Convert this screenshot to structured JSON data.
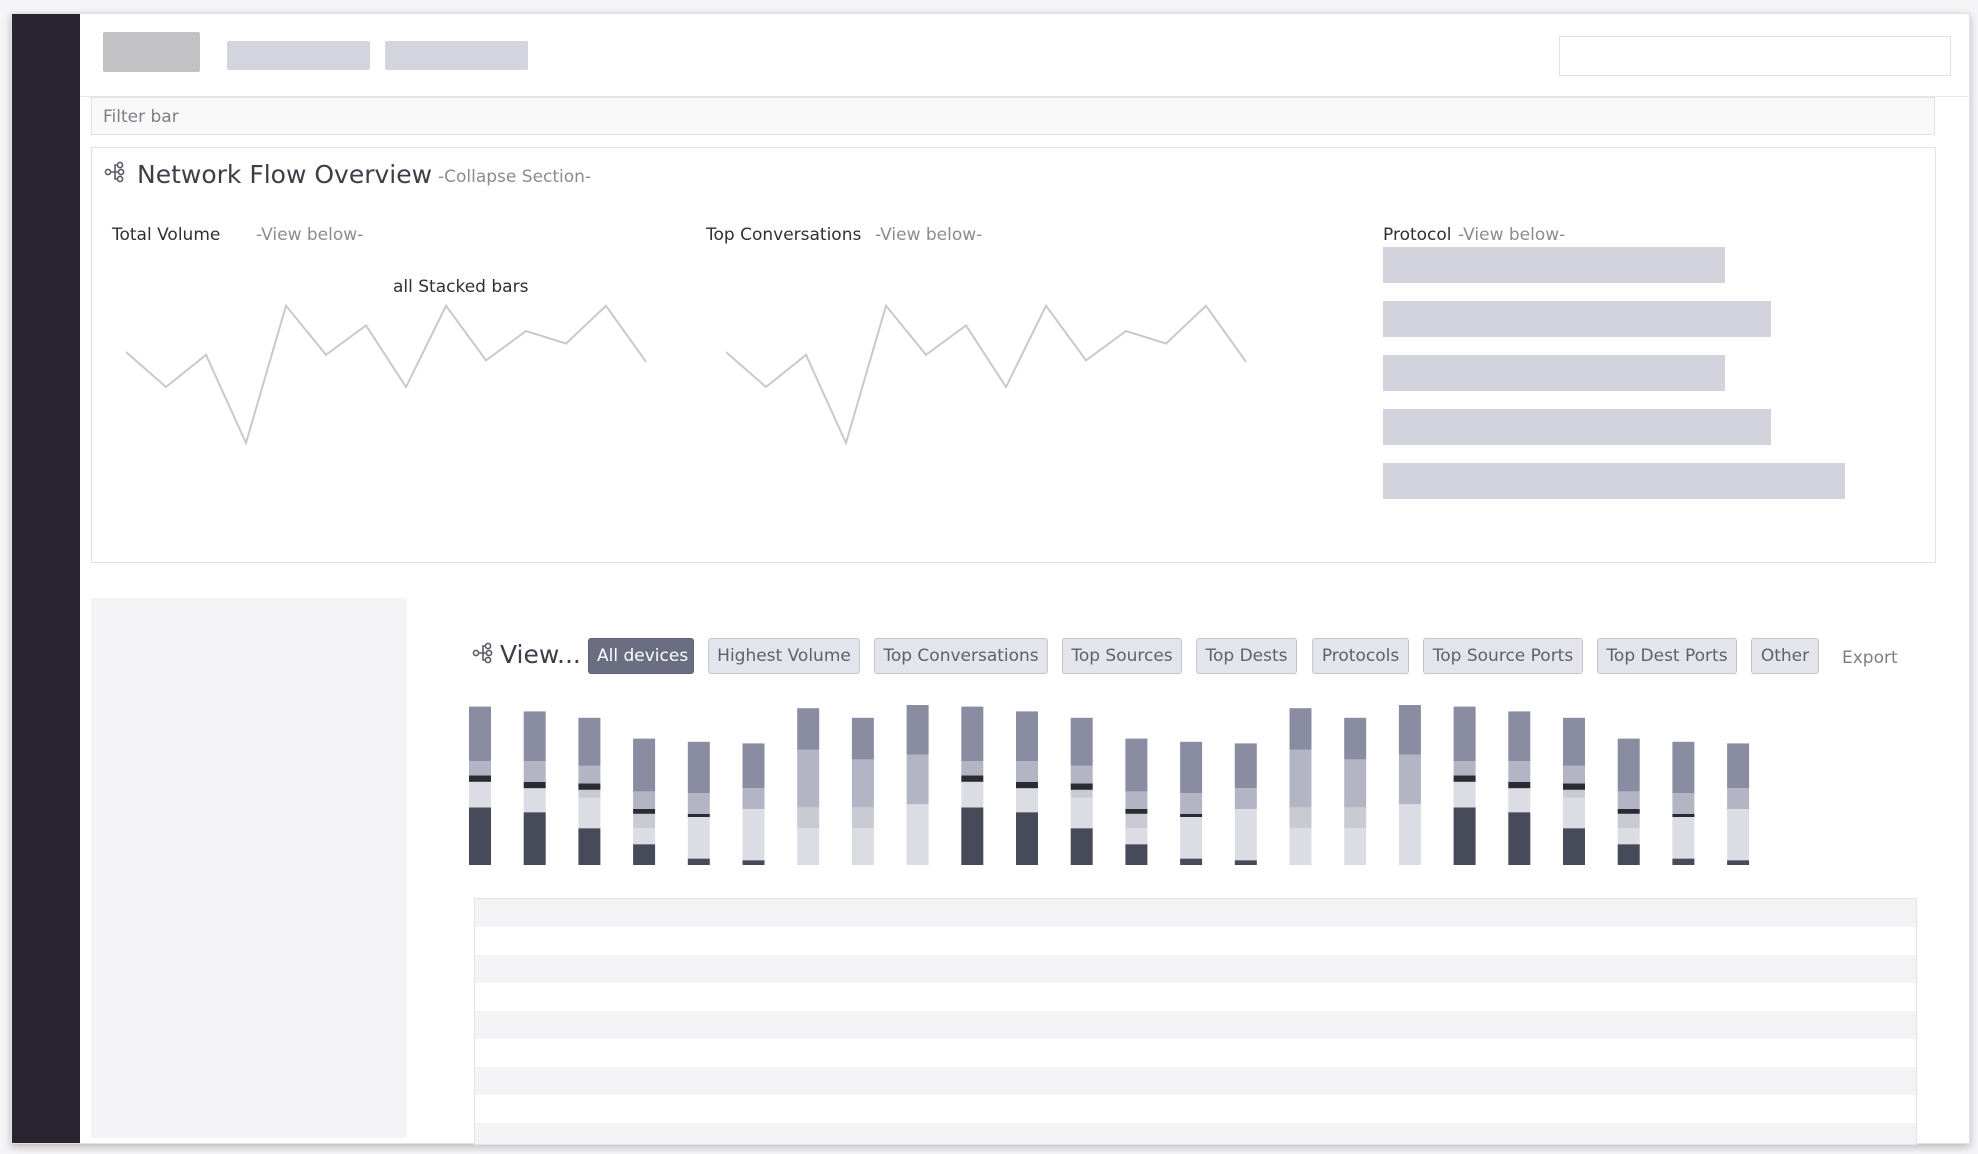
{
  "filter_bar": {
    "label": "Filter bar"
  },
  "overview": {
    "title": "Network Flow Overview",
    "collapse_label": "-Collapse Section-",
    "panels": [
      {
        "title": "Total Volume",
        "link": "-View below-",
        "chart_label": "all Stacked bars"
      },
      {
        "title": "Top Conversations",
        "link": "-View below-"
      },
      {
        "title": "Protocol",
        "link": "-View below-"
      }
    ],
    "protocol_bars": [
      0.74,
      0.84,
      0.74,
      0.84,
      1.0
    ]
  },
  "sparkline": [
    0.65,
    0.4,
    0.63,
    0.0,
    0.98,
    0.63,
    0.84,
    0.4,
    0.98,
    0.59,
    0.8,
    0.71,
    0.98,
    0.58
  ],
  "view": {
    "title": "View...",
    "tabs": [
      {
        "label": "All devices",
        "active": true
      },
      {
        "label": "Highest Volume",
        "active": false
      },
      {
        "label": "Top Conversations",
        "active": false
      },
      {
        "label": "Top Sources",
        "active": false
      },
      {
        "label": "Top Dests",
        "active": false
      },
      {
        "label": "Protocols",
        "active": false
      },
      {
        "label": "Top Source Ports",
        "active": false
      },
      {
        "label": "Top Dest Ports",
        "active": false
      },
      {
        "label": "Other",
        "active": false
      }
    ],
    "export_label": "Export"
  },
  "colors": {
    "sidebar": "#2a2330",
    "active_tab": "#6b6e81",
    "series": [
      "#474a59",
      "#dcdde4",
      "#c9cad4",
      "#2a2b33",
      "#b3b5c4",
      "#8a8ca2"
    ]
  },
  "stacked_bars": [
    [
      0.36,
      0.16,
      0.0,
      0.04,
      0.09,
      0.34
    ],
    [
      0.33,
      0.15,
      0.0,
      0.04,
      0.13,
      0.31
    ],
    [
      0.23,
      0.19,
      0.05,
      0.04,
      0.11,
      0.3
    ],
    [
      0.13,
      0.1,
      0.09,
      0.03,
      0.11,
      0.33
    ],
    [
      0.04,
      0.26,
      0.0,
      0.02,
      0.13,
      0.32
    ],
    [
      0.03,
      0.32,
      0.0,
      0.0,
      0.13,
      0.28
    ],
    [
      0.0,
      0.23,
      0.13,
      0.0,
      0.36,
      0.26
    ],
    [
      0.0,
      0.23,
      0.13,
      0.0,
      0.3,
      0.26
    ],
    [
      0.0,
      0.38,
      0.0,
      0.0,
      0.31,
      0.31
    ],
    [
      0.36,
      0.16,
      0.0,
      0.04,
      0.09,
      0.34
    ],
    [
      0.33,
      0.15,
      0.0,
      0.04,
      0.13,
      0.31
    ],
    [
      0.23,
      0.19,
      0.05,
      0.04,
      0.11,
      0.3
    ],
    [
      0.13,
      0.1,
      0.09,
      0.03,
      0.11,
      0.33
    ],
    [
      0.04,
      0.26,
      0.0,
      0.02,
      0.13,
      0.32
    ],
    [
      0.03,
      0.32,
      0.0,
      0.0,
      0.13,
      0.28
    ],
    [
      0.0,
      0.23,
      0.13,
      0.0,
      0.36,
      0.26
    ],
    [
      0.0,
      0.23,
      0.13,
      0.0,
      0.3,
      0.26
    ],
    [
      0.0,
      0.38,
      0.0,
      0.0,
      0.31,
      0.31
    ],
    [
      0.36,
      0.16,
      0.0,
      0.04,
      0.09,
      0.34
    ],
    [
      0.33,
      0.15,
      0.0,
      0.04,
      0.13,
      0.31
    ],
    [
      0.23,
      0.19,
      0.05,
      0.04,
      0.11,
      0.3
    ],
    [
      0.13,
      0.1,
      0.09,
      0.03,
      0.11,
      0.33
    ],
    [
      0.04,
      0.26,
      0.0,
      0.02,
      0.13,
      0.32
    ],
    [
      0.03,
      0.32,
      0.0,
      0.0,
      0.13,
      0.28
    ]
  ]
}
